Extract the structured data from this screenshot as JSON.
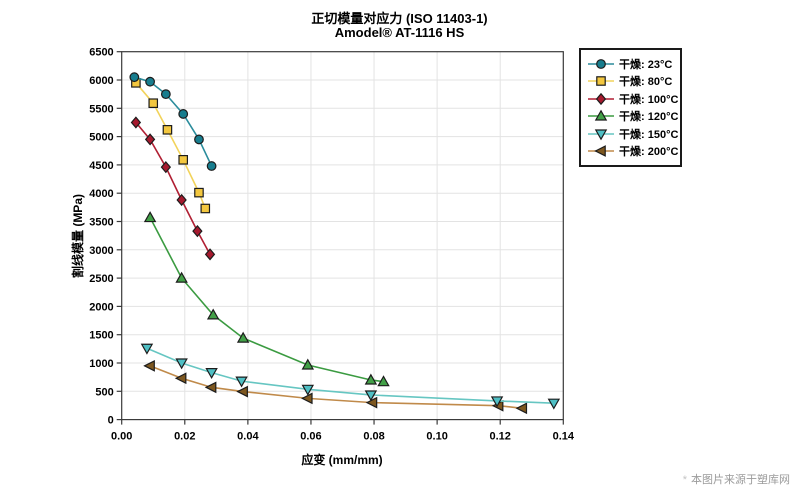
{
  "page": {
    "watermark_star": "*",
    "watermark_text": "本图片来源于塑库网"
  },
  "chart_data": {
    "type": "line",
    "title_line1": "正切模量对应力 (ISO 11403-1)",
    "title_line2": "Amodel® AT-1116 HS",
    "xlabel": "应变 (mm/mm)",
    "ylabel": "割线模量 (MPa)",
    "xlim": [
      0,
      0.14
    ],
    "ylim": [
      0,
      6500
    ],
    "grid": true,
    "legend_position": "outside-top-right",
    "x_ticks": [
      0,
      0.02,
      0.04,
      0.06,
      0.08,
      0.1,
      0.12,
      0.14
    ],
    "x_tick_labels": [
      "0.00",
      "0.02",
      "0.04",
      "0.06",
      "0.08",
      "0.10",
      "0.12",
      "0.14"
    ],
    "y_ticks": [
      0,
      500,
      1000,
      1500,
      2000,
      2500,
      3000,
      3500,
      4000,
      4500,
      5000,
      5500,
      6000,
      6500
    ],
    "y_tick_labels": [
      "0",
      "500",
      "1000",
      "1500",
      "2000",
      "2500",
      "3000",
      "3500",
      "4000",
      "4500",
      "5000",
      "5500",
      "6000",
      "6500"
    ],
    "series": [
      {
        "name": "干燥: 23°C",
        "marker": "circle",
        "marker_fill": "#177d8e",
        "line_color": "#2b8c9c",
        "points": [
          [
            0.004,
            6050
          ],
          [
            0.009,
            5970
          ],
          [
            0.014,
            5750
          ],
          [
            0.0195,
            5400
          ],
          [
            0.0245,
            4950
          ],
          [
            0.0285,
            4480
          ]
        ]
      },
      {
        "name": "干燥: 80°C",
        "marker": "square",
        "marker_fill": "#f3c73f",
        "line_color": "#f2d35b",
        "points": [
          [
            0.0045,
            5950
          ],
          [
            0.01,
            5590
          ],
          [
            0.0145,
            5120
          ],
          [
            0.0195,
            4590
          ],
          [
            0.0245,
            4010
          ],
          [
            0.0265,
            3730
          ]
        ]
      },
      {
        "name": "干燥: 100°C",
        "marker": "diamond",
        "marker_fill": "#a6192e",
        "line_color": "#b01f33",
        "points": [
          [
            0.0045,
            5250
          ],
          [
            0.009,
            4950
          ],
          [
            0.014,
            4460
          ],
          [
            0.019,
            3880
          ],
          [
            0.024,
            3330
          ],
          [
            0.028,
            2920
          ]
        ]
      },
      {
        "name": "干燥: 120°C",
        "marker": "triangle-up",
        "marker_fill": "#42a047",
        "line_color": "#3b9b41",
        "points": [
          [
            0.009,
            3570
          ],
          [
            0.019,
            2500
          ],
          [
            0.029,
            1850
          ],
          [
            0.0385,
            1440
          ],
          [
            0.059,
            965
          ],
          [
            0.079,
            700
          ],
          [
            0.083,
            670
          ]
        ]
      },
      {
        "name": "干燥: 150°C",
        "marker": "triangle-down",
        "marker_fill": "#4fbfc4",
        "line_color": "#66c6c2",
        "points": [
          [
            0.008,
            1260
          ],
          [
            0.019,
            1000
          ],
          [
            0.0285,
            830
          ],
          [
            0.038,
            680
          ],
          [
            0.059,
            535
          ],
          [
            0.079,
            435
          ],
          [
            0.119,
            330
          ],
          [
            0.137,
            290
          ]
        ]
      },
      {
        "name": "干燥: 200°C",
        "marker": "triangle-left",
        "marker_fill": "#7d571f",
        "line_color": "#c08a4a",
        "points": [
          [
            0.009,
            950
          ],
          [
            0.019,
            730
          ],
          [
            0.0285,
            570
          ],
          [
            0.0385,
            495
          ],
          [
            0.059,
            375
          ],
          [
            0.0795,
            300
          ],
          [
            0.1195,
            245
          ],
          [
            0.127,
            200
          ]
        ]
      }
    ]
  }
}
